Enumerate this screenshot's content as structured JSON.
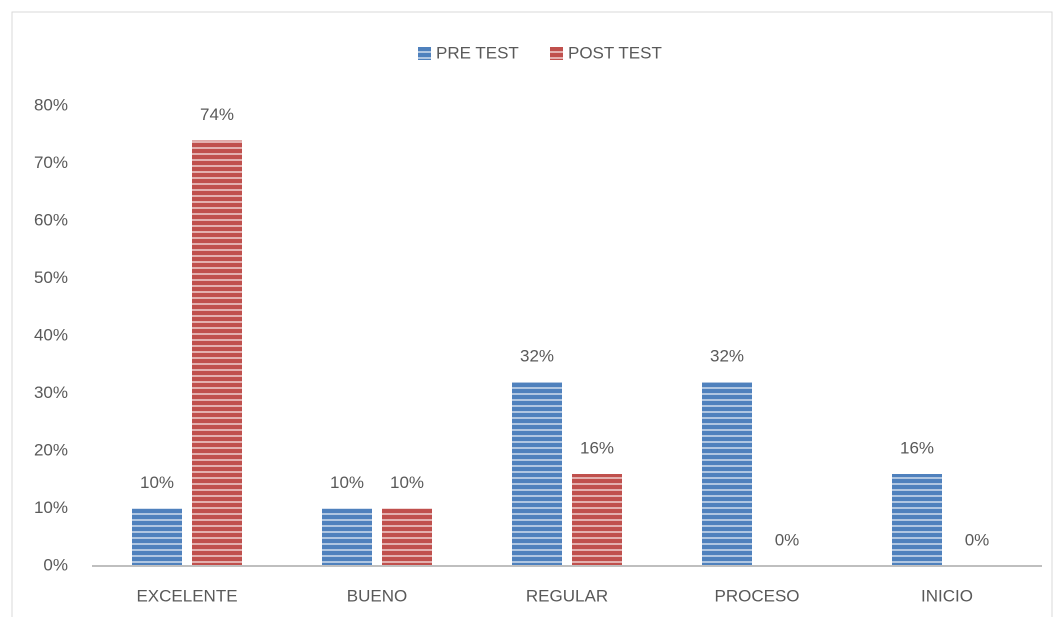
{
  "chart_data": {
    "type": "bar",
    "categories": [
      "EXCELENTE",
      "BUENO",
      "REGULAR",
      "PROCESO",
      "INICIO"
    ],
    "series": [
      {
        "name": "PRE TEST",
        "color": "#4f81bd",
        "values": [
          10,
          10,
          32,
          32,
          16
        ],
        "value_labels": [
          "10%",
          "10%",
          "32%",
          "32%",
          "16%"
        ]
      },
      {
        "name": "POST TEST",
        "color": "#c0504d",
        "values": [
          74,
          10,
          16,
          0,
          0
        ],
        "value_labels": [
          "74%",
          "10%",
          "16%",
          "0%",
          "0%"
        ]
      }
    ],
    "ylim": [
      0,
      80
    ],
    "yticks": [
      {
        "value": 0,
        "label": "0%"
      },
      {
        "value": 10,
        "label": "10%"
      },
      {
        "value": 20,
        "label": "20%"
      },
      {
        "value": 30,
        "label": "30%"
      },
      {
        "value": 40,
        "label": "40%"
      },
      {
        "value": 50,
        "label": "50%"
      },
      {
        "value": 60,
        "label": "60%"
      },
      {
        "value": 70,
        "label": "70%"
      },
      {
        "value": 80,
        "label": "80%"
      }
    ],
    "grid": false,
    "legend": "top"
  }
}
